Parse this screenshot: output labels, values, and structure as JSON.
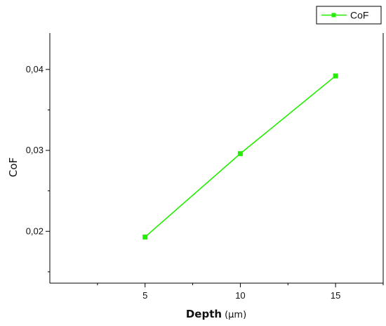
{
  "chart_data": {
    "type": "line",
    "xlabel_main": "Depth",
    "xlabel_unit": "(µm)",
    "ylabel": "CoF",
    "xlim": [
      0,
      17.5
    ],
    "ylim": [
      0.0136,
      0.0445
    ],
    "xticks": [
      5,
      10,
      15
    ],
    "xtick_labels": [
      "5",
      "10",
      "15"
    ],
    "yticks": [
      0.02,
      0.03,
      0.04
    ],
    "ytick_labels": [
      "0,02",
      "0,03",
      "0,04"
    ],
    "grid": false,
    "legend_position": "top-right",
    "series": [
      {
        "name": "CoF",
        "color": "#22ee00",
        "marker": "square",
        "x": [
          5,
          10,
          15
        ],
        "y": [
          0.0193,
          0.0296,
          0.0392
        ]
      }
    ]
  }
}
